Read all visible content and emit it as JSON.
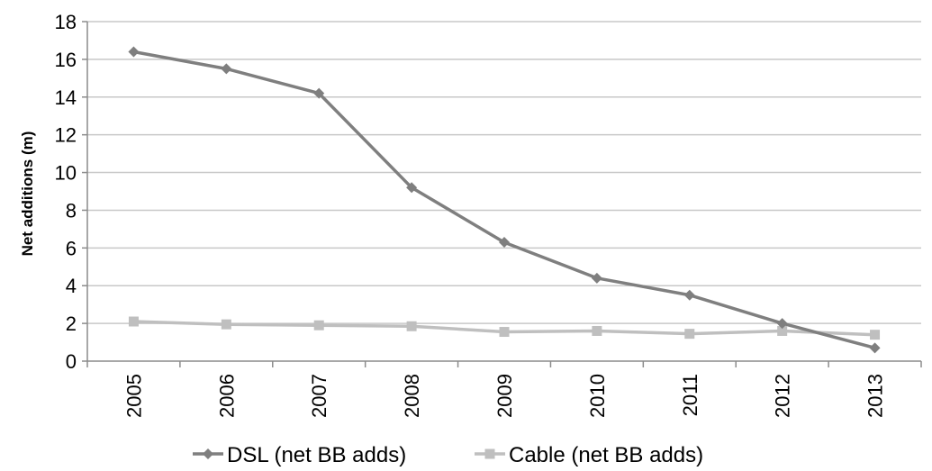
{
  "chart_data": {
    "type": "line",
    "title": "",
    "xlabel": "",
    "ylabel": "Net additions (m)",
    "categories": [
      "2005",
      "2006",
      "2007",
      "2008",
      "2009",
      "2010",
      "2011",
      "2012",
      "2013"
    ],
    "ylim": [
      0,
      18
    ],
    "yticks": [
      0,
      2,
      4,
      6,
      8,
      10,
      12,
      14,
      16,
      18
    ],
    "grid": "horizontal",
    "legend_position": "bottom",
    "series": [
      {
        "name": "DSL (net BB adds)",
        "marker": "diamond",
        "color": "#7f7f7f",
        "values": [
          16.4,
          15.5,
          14.2,
          9.2,
          6.3,
          4.4,
          3.5,
          2.0,
          0.7
        ]
      },
      {
        "name": "Cable (net BB adds)",
        "marker": "square",
        "color": "#bfbfbf",
        "values": [
          2.1,
          1.95,
          1.9,
          1.85,
          1.55,
          1.6,
          1.45,
          1.6,
          1.4
        ]
      }
    ]
  }
}
